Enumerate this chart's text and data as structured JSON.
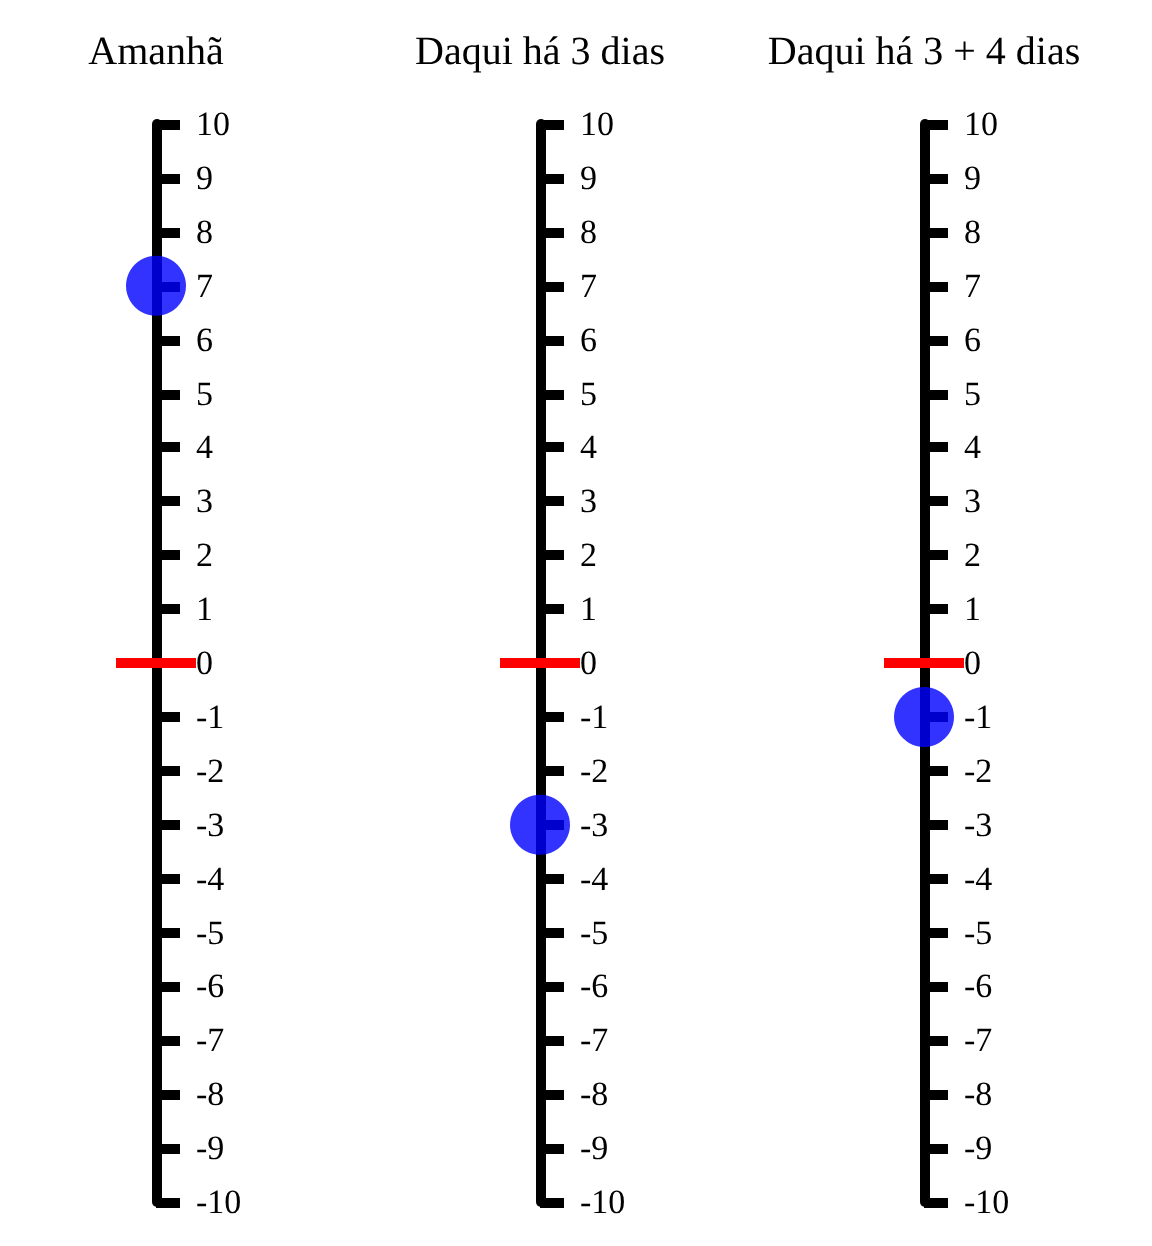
{
  "chart_data": [
    {
      "type": "scatter",
      "categories": [
        "Amanhã"
      ],
      "values": [
        7
      ],
      "color": "#0000ff",
      "ylim": [
        -10,
        10
      ],
      "yticks": [
        -10,
        -9,
        -8,
        -7,
        -6,
        -5,
        -4,
        -3,
        -2,
        -1,
        0,
        1,
        2,
        3,
        4,
        5,
        6,
        7,
        8,
        9,
        10
      ],
      "marker": "circle",
      "ref_lines": [
        {
          "axis": "y",
          "value": 0,
          "color": "#ff0000"
        }
      ]
    },
    {
      "type": "scatter",
      "categories": [
        "Daqui há 3 dias"
      ],
      "values": [
        -3
      ],
      "color": "#0000ff",
      "ylim": [
        -10,
        10
      ],
      "yticks": [
        -10,
        -9,
        -8,
        -7,
        -6,
        -5,
        -4,
        -3,
        -2,
        -1,
        0,
        1,
        2,
        3,
        4,
        5,
        6,
        7,
        8,
        9,
        10
      ],
      "marker": "circle",
      "ref_lines": [
        {
          "axis": "y",
          "value": 0,
          "color": "#ff0000"
        }
      ]
    },
    {
      "type": "scatter",
      "categories": [
        "Daqui há 3 + 4 dias"
      ],
      "values": [
        -1
      ],
      "color": "#0000ff",
      "ylim": [
        -10,
        10
      ],
      "yticks": [
        -10,
        -9,
        -8,
        -7,
        -6,
        -5,
        -4,
        -3,
        -2,
        -1,
        0,
        1,
        2,
        3,
        4,
        5,
        6,
        7,
        8,
        9,
        10
      ],
      "marker": "circle",
      "ref_lines": [
        {
          "axis": "y",
          "value": 0,
          "color": "#ff0000"
        }
      ]
    }
  ]
}
